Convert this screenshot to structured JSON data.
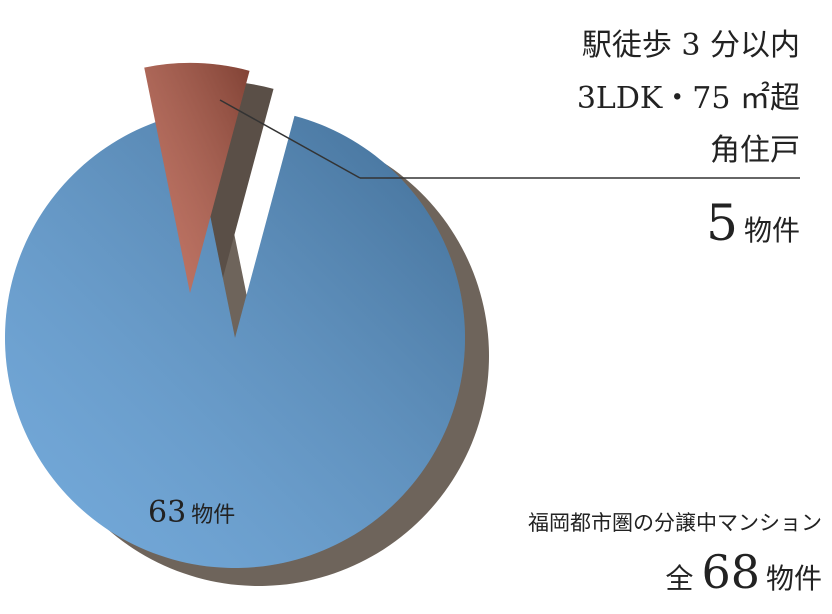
{
  "chart_data": {
    "type": "pie",
    "values": [
      63,
      5
    ],
    "colors": [
      "#5b9bd5",
      "#b85e4b"
    ],
    "unit": "物件",
    "annotation": [
      "駅徒歩 3 分以内",
      "3LDK・75 ㎡超",
      "角住戸"
    ],
    "subtitle": "福岡都市圏の分譲中マンション",
    "total_prefix": "全",
    "total": 68
  }
}
